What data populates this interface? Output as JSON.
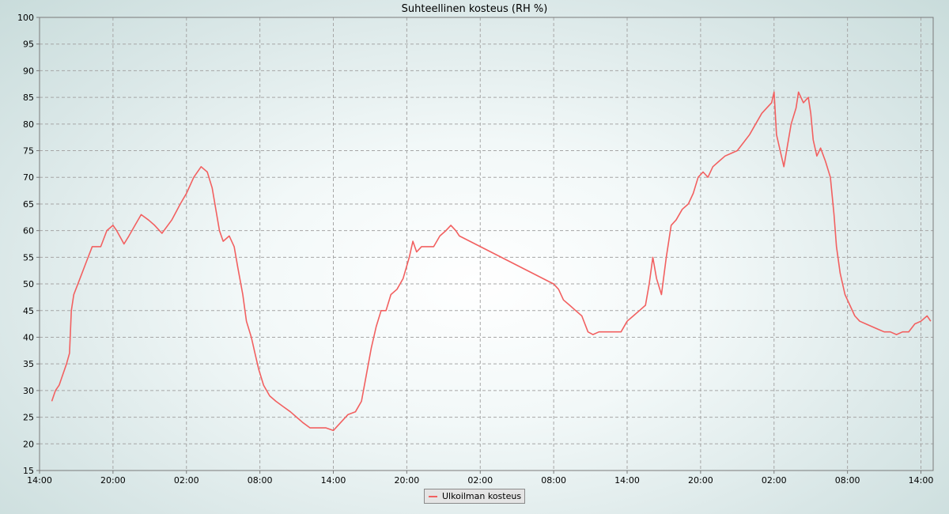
{
  "chart_data": {
    "type": "line",
    "title": "Suhteellinen kosteus (RH %)",
    "xlabel": "",
    "ylabel": "",
    "x_unit": "hours from start",
    "xlim": [
      0,
      73
    ],
    "ylim": [
      15,
      100
    ],
    "y_ticks": [
      15,
      20,
      25,
      30,
      35,
      40,
      45,
      50,
      55,
      60,
      65,
      70,
      75,
      80,
      85,
      90,
      95,
      100
    ],
    "x_ticks": [
      {
        "t": 0,
        "label": "14:00"
      },
      {
        "t": 6,
        "label": "20:00"
      },
      {
        "t": 12,
        "label": "02:00"
      },
      {
        "t": 18,
        "label": "08:00"
      },
      {
        "t": 24,
        "label": "14:00"
      },
      {
        "t": 30,
        "label": "20:00"
      },
      {
        "t": 36,
        "label": "02:00"
      },
      {
        "t": 42,
        "label": "08:00"
      },
      {
        "t": 48,
        "label": "14:00"
      },
      {
        "t": 54,
        "label": "20:00"
      },
      {
        "t": 60,
        "label": "02:00"
      },
      {
        "t": 66,
        "label": "08:00"
      },
      {
        "t": 72,
        "label": "14:00"
      }
    ],
    "grid": true,
    "legend_position": "bottom-center",
    "series": [
      {
        "name": "Ulkoilman kosteus",
        "color": "#f26060",
        "points": [
          [
            1.0,
            28
          ],
          [
            1.3,
            30
          ],
          [
            1.6,
            31
          ],
          [
            1.9,
            33
          ],
          [
            2.2,
            35
          ],
          [
            2.45,
            37
          ],
          [
            2.6,
            45
          ],
          [
            2.8,
            48
          ],
          [
            3.3,
            51
          ],
          [
            3.8,
            54
          ],
          [
            4.3,
            57
          ],
          [
            5.0,
            57
          ],
          [
            5.5,
            60
          ],
          [
            6.0,
            61
          ],
          [
            6.3,
            60
          ],
          [
            6.9,
            57.5
          ],
          [
            7.3,
            59
          ],
          [
            7.8,
            61
          ],
          [
            8.3,
            63
          ],
          [
            8.9,
            62
          ],
          [
            9.4,
            61
          ],
          [
            10.0,
            59.5
          ],
          [
            10.8,
            62
          ],
          [
            11.5,
            65
          ],
          [
            12.0,
            67
          ],
          [
            12.6,
            70
          ],
          [
            13.2,
            72
          ],
          [
            13.7,
            71
          ],
          [
            14.1,
            68
          ],
          [
            14.4,
            64
          ],
          [
            14.7,
            60
          ],
          [
            15.0,
            58
          ],
          [
            15.5,
            59
          ],
          [
            15.9,
            57
          ],
          [
            16.2,
            53
          ],
          [
            16.6,
            48
          ],
          [
            16.9,
            43
          ],
          [
            17.3,
            40
          ],
          [
            17.6,
            37
          ],
          [
            17.9,
            34
          ],
          [
            18.3,
            31
          ],
          [
            18.8,
            29
          ],
          [
            19.3,
            28
          ],
          [
            19.9,
            27
          ],
          [
            20.5,
            26
          ],
          [
            21.0,
            25
          ],
          [
            21.5,
            24
          ],
          [
            22.1,
            23
          ],
          [
            22.8,
            23
          ],
          [
            23.4,
            23
          ],
          [
            24.0,
            22.5
          ],
          [
            24.6,
            24
          ],
          [
            25.2,
            25.5
          ],
          [
            25.8,
            26
          ],
          [
            26.3,
            28
          ],
          [
            26.7,
            33
          ],
          [
            27.1,
            38
          ],
          [
            27.5,
            42
          ],
          [
            27.9,
            45
          ],
          [
            28.3,
            45
          ],
          [
            28.7,
            48
          ],
          [
            29.2,
            49
          ],
          [
            29.7,
            51
          ],
          [
            30.2,
            55
          ],
          [
            30.5,
            58
          ],
          [
            30.8,
            56
          ],
          [
            31.2,
            57
          ],
          [
            31.7,
            57
          ],
          [
            32.2,
            57
          ],
          [
            32.7,
            59
          ],
          [
            33.2,
            60
          ],
          [
            33.6,
            61
          ],
          [
            34.0,
            60
          ],
          [
            34.3,
            59
          ],
          [
            42.0,
            50
          ],
          [
            42.4,
            49
          ],
          [
            42.8,
            47
          ],
          [
            43.3,
            46
          ],
          [
            43.8,
            45
          ],
          [
            44.3,
            44
          ],
          [
            44.8,
            41
          ],
          [
            45.2,
            40.5
          ],
          [
            45.7,
            41
          ],
          [
            46.3,
            41
          ],
          [
            47.0,
            41
          ],
          [
            47.5,
            41
          ],
          [
            48.0,
            43
          ],
          [
            48.5,
            44
          ],
          [
            49.0,
            45
          ],
          [
            49.5,
            46
          ],
          [
            49.8,
            50
          ],
          [
            50.1,
            55
          ],
          [
            50.4,
            51
          ],
          [
            50.8,
            48
          ],
          [
            51.2,
            55
          ],
          [
            51.6,
            61
          ],
          [
            52.0,
            62
          ],
          [
            52.5,
            64
          ],
          [
            53.0,
            65
          ],
          [
            53.4,
            67
          ],
          [
            53.8,
            70
          ],
          [
            54.2,
            71
          ],
          [
            54.6,
            70
          ],
          [
            55.0,
            72
          ],
          [
            55.5,
            73
          ],
          [
            56.0,
            74
          ],
          [
            56.5,
            74.5
          ],
          [
            57.0,
            75
          ],
          [
            57.5,
            76.5
          ],
          [
            58.0,
            78
          ],
          [
            58.5,
            80
          ],
          [
            59.0,
            82
          ],
          [
            59.4,
            83
          ],
          [
            59.8,
            84
          ],
          [
            60.0,
            86
          ],
          [
            60.2,
            78
          ],
          [
            60.5,
            75
          ],
          [
            60.8,
            72
          ],
          [
            61.1,
            76
          ],
          [
            61.4,
            80
          ],
          [
            61.8,
            83
          ],
          [
            62.0,
            86
          ],
          [
            62.4,
            84
          ],
          [
            62.8,
            85
          ],
          [
            63.0,
            82
          ],
          [
            63.2,
            77
          ],
          [
            63.5,
            74
          ],
          [
            63.8,
            75.5
          ],
          [
            64.2,
            73
          ],
          [
            64.6,
            70
          ],
          [
            64.9,
            63
          ],
          [
            65.1,
            57
          ],
          [
            65.4,
            52
          ],
          [
            65.8,
            48
          ],
          [
            66.2,
            46
          ],
          [
            66.6,
            44
          ],
          [
            67.0,
            43
          ],
          [
            67.5,
            42.5
          ],
          [
            68.0,
            42
          ],
          [
            68.5,
            41.5
          ],
          [
            69.0,
            41
          ],
          [
            69.5,
            41
          ],
          [
            70.0,
            40.5
          ],
          [
            70.5,
            41
          ],
          [
            71.0,
            41
          ],
          [
            71.5,
            42.5
          ],
          [
            72.0,
            43
          ],
          [
            72.5,
            44
          ],
          [
            72.8,
            43
          ]
        ]
      }
    ]
  }
}
